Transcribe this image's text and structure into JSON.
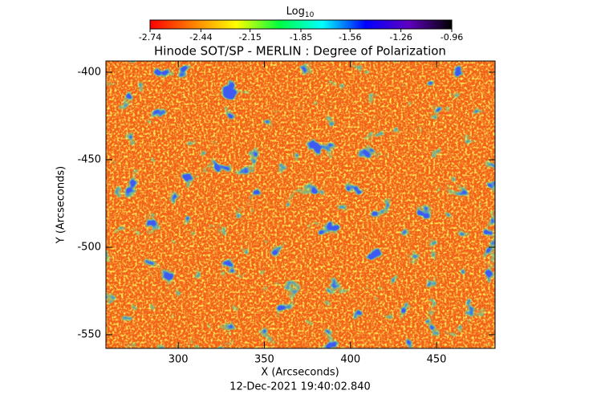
{
  "chart_data": {
    "type": "image",
    "title": "Hinode SOT/SP - MERLIN : Degree of Polarization",
    "xlabel": "X (Arcseconds)",
    "ylabel": "Y (Arcseconds)",
    "timestamp": "12-Dec-2021 19:40:02.840",
    "colorbar_label": "Log",
    "colorbar_label_sub": "10",
    "clim": [
      -2.74,
      -0.96
    ],
    "cticks": [
      -2.74,
      -2.44,
      -2.15,
      -1.85,
      -1.56,
      -1.26,
      -0.96
    ],
    "colormap": [
      "#ff0000",
      "#ff8000",
      "#ffff00",
      "#00ff40",
      "#00ffff",
      "#0000ff",
      "#6000c0",
      "#000000"
    ],
    "xlim": [
      258,
      484
    ],
    "xticks": [
      300,
      350,
      400,
      450
    ],
    "ylim": [
      -557.8,
      -393.6
    ],
    "yticks": [
      -400,
      -450,
      -500,
      -550
    ]
  }
}
